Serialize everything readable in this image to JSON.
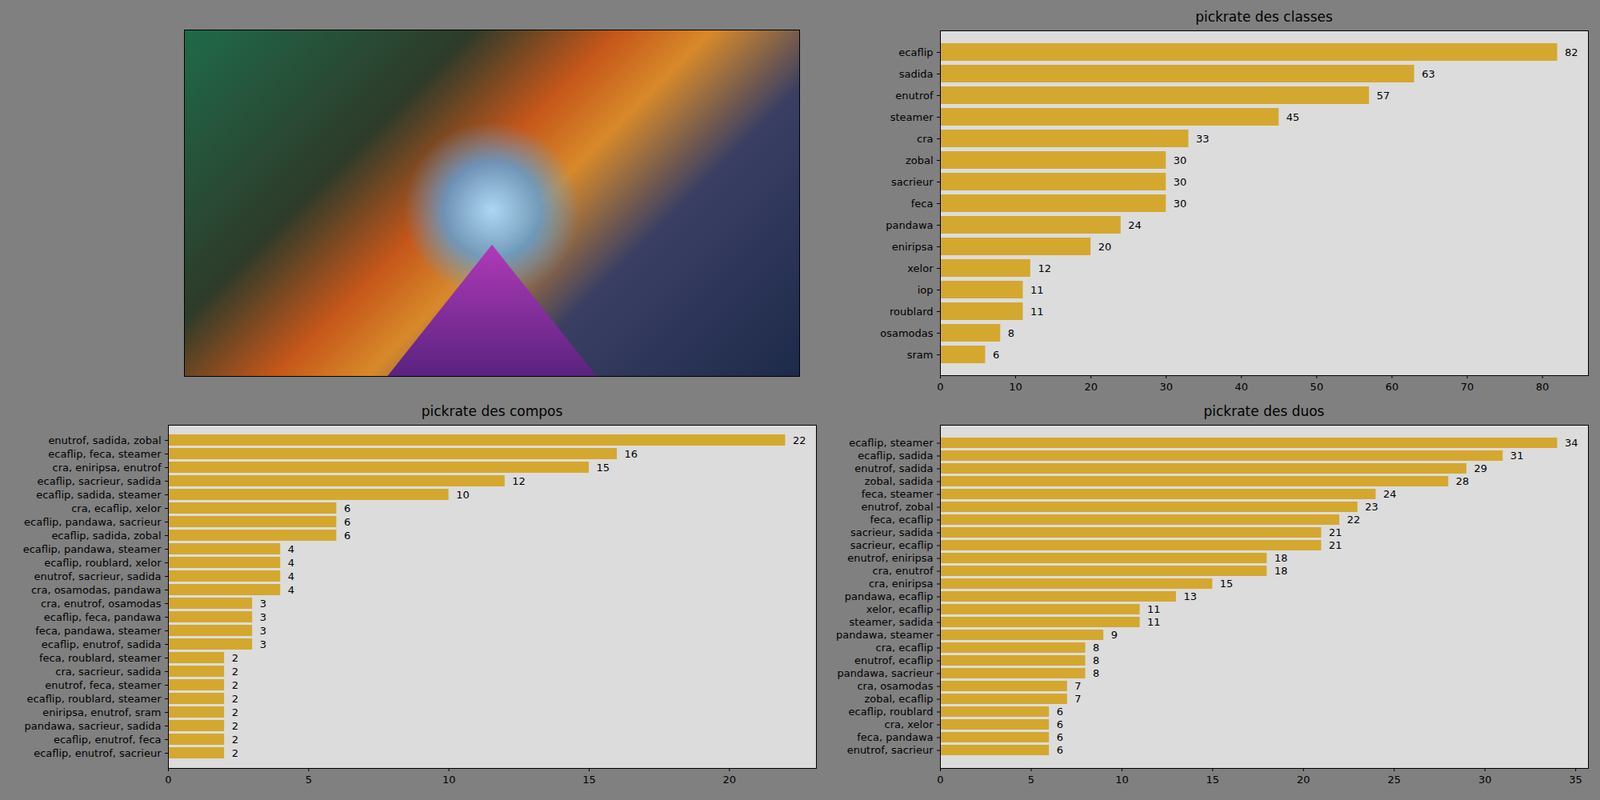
{
  "chart_data": [
    {
      "type": "bar",
      "title": "pickrate des classes",
      "orientation": "horizontal",
      "data_labels": true,
      "color": "#d4a82f",
      "grid": false,
      "categories": [
        "ecaflip",
        "sadida",
        "enutrof",
        "steamer",
        "cra",
        "zobal",
        "sacrieur",
        "feca",
        "pandawa",
        "eniripsa",
        "xelor",
        "iop",
        "roublard",
        "osamodas",
        "sram"
      ],
      "values": [
        82,
        63,
        57,
        45,
        33,
        30,
        30,
        30,
        24,
        20,
        12,
        11,
        11,
        8,
        6
      ],
      "xlim": [
        0,
        86.1
      ],
      "xticks": [
        0,
        10,
        20,
        30,
        40,
        50,
        60,
        70,
        80
      ]
    },
    {
      "type": "bar",
      "title": "pickrate des compos",
      "orientation": "horizontal",
      "data_labels": true,
      "color": "#d4a82f",
      "grid": false,
      "categories": [
        "enutrof, sadida, zobal",
        "ecaflip, feca, steamer",
        "cra, eniripsa, enutrof",
        "ecaflip, sacrieur, sadida",
        "ecaflip, sadida, steamer",
        "cra, ecaflip, xelor",
        "ecaflip, pandawa, sacrieur",
        "ecaflip, sadida, zobal",
        "ecaflip, pandawa, steamer",
        "ecaflip, roublard, xelor",
        "enutrof, sacrieur, sadida",
        "cra, osamodas, pandawa",
        "cra, enutrof, osamodas",
        "ecaflip, feca, pandawa",
        "feca, pandawa, steamer",
        "ecaflip, enutrof, sadida",
        "feca, roublard, steamer",
        "cra, sacrieur, sadida",
        "enutrof, feca, steamer",
        "ecaflip, roublard, steamer",
        "eniripsa, enutrof, sram",
        "pandawa, sacrieur, sadida",
        "ecaflip, enutrof, feca",
        "ecaflip, enutrof, sacrieur"
      ],
      "values": [
        22,
        16,
        15,
        12,
        10,
        6,
        6,
        6,
        4,
        4,
        4,
        4,
        3,
        3,
        3,
        3,
        2,
        2,
        2,
        2,
        2,
        2,
        2,
        2
      ],
      "xlim": [
        0,
        23.1
      ],
      "xticks": [
        0,
        5,
        10,
        15,
        20
      ]
    },
    {
      "type": "bar",
      "title": "pickrate des duos",
      "orientation": "horizontal",
      "data_labels": true,
      "color": "#d4a82f",
      "grid": false,
      "categories": [
        "ecaflip, steamer",
        "ecaflip, sadida",
        "enutrof, sadida",
        "zobal, sadida",
        "feca, steamer",
        "enutrof, zobal",
        "feca, ecaflip",
        "sacrieur, sadida",
        "sacrieur, ecaflip",
        "enutrof, eniripsa",
        "cra, enutrof",
        "cra, eniripsa",
        "pandawa, ecaflip",
        "xelor, ecaflip",
        "steamer, sadida",
        "pandawa, steamer",
        "cra, ecaflip",
        "enutrof, ecaflip",
        "pandawa, sacrieur",
        "cra, osamodas",
        "zobal, ecaflip",
        "ecaflip, roublard",
        "cra, xelor",
        "feca, pandawa",
        "enutrof, sacrieur"
      ],
      "values": [
        34,
        31,
        29,
        28,
        24,
        23,
        22,
        21,
        21,
        18,
        18,
        15,
        13,
        11,
        11,
        9,
        8,
        8,
        8,
        7,
        7,
        6,
        6,
        6,
        6
      ],
      "xlim": [
        0,
        35.7
      ],
      "xticks": [
        0,
        5,
        10,
        15,
        20,
        25,
        30,
        35
      ]
    }
  ]
}
